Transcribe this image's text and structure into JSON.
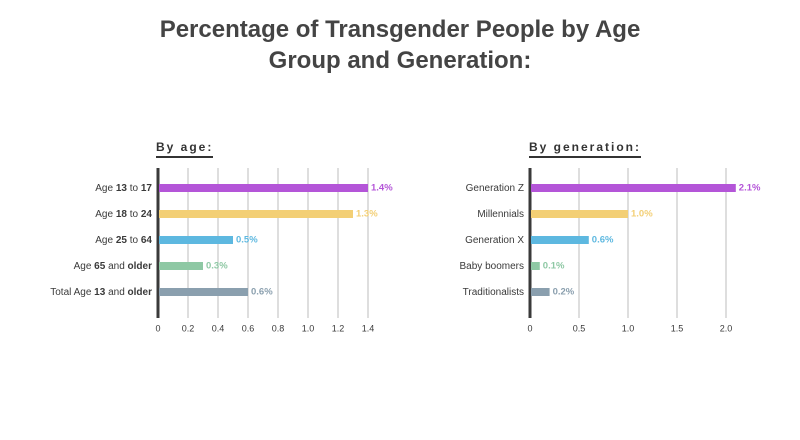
{
  "title_line1": "Percentage of Transgender People by Age",
  "title_line2": "Group and Generation:",
  "chart_data": [
    {
      "type": "bar",
      "orientation": "horizontal",
      "label": "By age:",
      "categories": [
        {
          "parts": [
            {
              "t": "Age ",
              "b": false
            },
            {
              "t": "13",
              "b": true
            },
            {
              "t": " to ",
              "b": false
            },
            {
              "t": "17",
              "b": true
            }
          ]
        },
        {
          "parts": [
            {
              "t": "Age ",
              "b": false
            },
            {
              "t": "18",
              "b": true
            },
            {
              "t": " to ",
              "b": false
            },
            {
              "t": "24",
              "b": true
            }
          ]
        },
        {
          "parts": [
            {
              "t": "Age ",
              "b": false
            },
            {
              "t": "25",
              "b": true
            },
            {
              "t": " to ",
              "b": false
            },
            {
              "t": "64",
              "b": true
            }
          ]
        },
        {
          "parts": [
            {
              "t": "Age ",
              "b": false
            },
            {
              "t": "65",
              "b": true
            },
            {
              "t": " and ",
              "b": false
            },
            {
              "t": "older",
              "b": true
            }
          ]
        },
        {
          "parts": [
            {
              "t": "Total Age ",
              "b": false
            },
            {
              "t": "13",
              "b": true
            },
            {
              "t": " and ",
              "b": false
            },
            {
              "t": "older",
              "b": true
            }
          ]
        }
      ],
      "values": [
        1.4,
        1.3,
        0.5,
        0.3,
        0.6
      ],
      "value_labels": [
        "1.4%",
        "1.3%",
        "0.5%",
        "0.3%",
        "0.6%"
      ],
      "colors": [
        "#b455d8",
        "#f3cf75",
        "#5db8e0",
        "#8ec8a4",
        "#8a9fae"
      ],
      "xlim": [
        0,
        1.5
      ],
      "ticks": [
        0,
        0.2,
        0.4,
        0.6,
        0.8,
        1.0,
        1.2,
        1.4
      ],
      "tick_labels": [
        "0",
        "0.2",
        "0.4",
        "0.6",
        "0.8",
        "1.0",
        "1.2",
        "1.4"
      ],
      "grid": true
    },
    {
      "type": "bar",
      "orientation": "horizontal",
      "label": "By generation:",
      "categories": [
        {
          "parts": [
            {
              "t": "Generation Z",
              "b": false
            }
          ]
        },
        {
          "parts": [
            {
              "t": "Millennials",
              "b": false
            }
          ]
        },
        {
          "parts": [
            {
              "t": "Generation X",
              "b": false
            }
          ]
        },
        {
          "parts": [
            {
              "t": "Baby boomers",
              "b": false
            }
          ]
        },
        {
          "parts": [
            {
              "t": "Traditionalists",
              "b": false
            }
          ]
        }
      ],
      "values": [
        2.1,
        1.0,
        0.6,
        0.1,
        0.2
      ],
      "value_labels": [
        "2.1%",
        "1.0%",
        "0.6%",
        "0.1%",
        "0.2%"
      ],
      "colors": [
        "#b455d8",
        "#f3cf75",
        "#5db8e0",
        "#8ec8a4",
        "#8a9fae"
      ],
      "xlim": [
        0,
        2.1
      ],
      "ticks": [
        0,
        0.5,
        1.0,
        1.5,
        2.0
      ],
      "tick_labels": [
        "0",
        "0.5",
        "1.0",
        "1.5",
        "2.0"
      ],
      "grid": true
    }
  ]
}
